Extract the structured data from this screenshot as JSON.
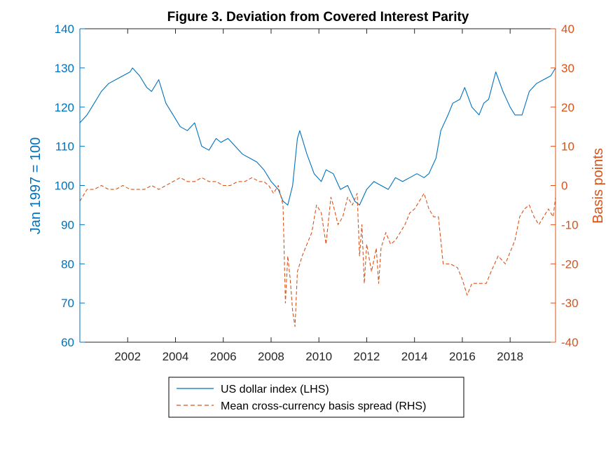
{
  "chart_data": {
    "type": "line",
    "title": "Figure 3. Deviation from Covered Interest Parity",
    "xlabel": "",
    "ylabel_left": "Jan 1997 = 100",
    "ylabel_right": "Basis points",
    "xlim": [
      2000.0,
      2019.9
    ],
    "ylim_left": [
      60,
      140
    ],
    "ylim_right": [
      -40,
      40
    ],
    "x_ticks": [
      "2002",
      "2004",
      "2006",
      "2008",
      "2010",
      "2012",
      "2014",
      "2016",
      "2018"
    ],
    "y_ticks_left": [
      "60",
      "70",
      "80",
      "90",
      "100",
      "110",
      "120",
      "130",
      "140"
    ],
    "y_ticks_right": [
      "-40",
      "-30",
      "-20",
      "-10",
      "0",
      "10",
      "20",
      "30",
      "40"
    ],
    "grid": false,
    "legend_position": "bottom-center",
    "colors": {
      "left": "#0072BD",
      "right": "#D95319"
    },
    "series": [
      {
        "name": "US dollar index (LHS)",
        "axis": "left",
        "style": "solid",
        "x": [
          2000.0,
          2000.3,
          2000.6,
          2000.9,
          2001.2,
          2001.5,
          2001.8,
          2002.1,
          2002.2,
          2002.5,
          2002.8,
          2003.0,
          2003.3,
          2003.6,
          2003.9,
          2004.2,
          2004.5,
          2004.8,
          2005.1,
          2005.4,
          2005.7,
          2005.9,
          2006.2,
          2006.5,
          2006.8,
          2007.1,
          2007.4,
          2007.7,
          2008.0,
          2008.3,
          2008.5,
          2008.7,
          2008.9,
          2009.1,
          2009.2,
          2009.5,
          2009.8,
          2010.1,
          2010.3,
          2010.6,
          2010.9,
          2011.2,
          2011.5,
          2011.7,
          2012.0,
          2012.3,
          2012.6,
          2012.9,
          2013.2,
          2013.5,
          2013.8,
          2014.1,
          2014.4,
          2014.6,
          2014.9,
          2015.1,
          2015.4,
          2015.6,
          2015.9,
          2016.1,
          2016.4,
          2016.7,
          2016.9,
          2017.1,
          2017.4,
          2017.7,
          2018.0,
          2018.2,
          2018.5,
          2018.8,
          2019.1,
          2019.4,
          2019.7,
          2019.9
        ],
        "values": [
          116,
          118,
          121,
          124,
          126,
          127,
          128,
          129,
          130,
          128,
          125,
          124,
          127,
          121,
          118,
          115,
          114,
          116,
          110,
          109,
          112,
          111,
          112,
          110,
          108,
          107,
          106,
          104,
          101,
          99,
          96,
          95,
          100,
          112,
          114,
          108,
          103,
          101,
          104,
          103,
          99,
          100,
          96,
          95,
          99,
          101,
          100,
          99,
          102,
          101,
          102,
          103,
          102,
          103,
          107,
          114,
          118,
          121,
          122,
          125,
          120,
          118,
          121,
          122,
          129,
          124,
          120,
          118,
          118,
          124,
          126,
          127,
          128,
          130
        ]
      },
      {
        "name": "Mean cross-currency basis spread (RHS)",
        "axis": "right",
        "style": "dashed",
        "x": [
          2000.0,
          2000.3,
          2000.6,
          2000.9,
          2001.2,
          2001.5,
          2001.8,
          2002.1,
          2002.4,
          2002.7,
          2003.0,
          2003.3,
          2003.6,
          2003.9,
          2004.2,
          2004.5,
          2004.8,
          2005.1,
          2005.4,
          2005.7,
          2006.0,
          2006.3,
          2006.6,
          2006.9,
          2007.2,
          2007.5,
          2007.7,
          2007.9,
          2008.1,
          2008.3,
          2008.5,
          2008.6,
          2008.7,
          2008.8,
          2008.9,
          2009.0,
          2009.1,
          2009.2,
          2009.3,
          2009.5,
          2009.7,
          2009.9,
          2010.1,
          2010.3,
          2010.5,
          2010.6,
          2010.8,
          2011.0,
          2011.2,
          2011.4,
          2011.6,
          2011.7,
          2011.8,
          2011.9,
          2012.0,
          2012.2,
          2012.4,
          2012.5,
          2012.6,
          2012.8,
          2013.0,
          2013.2,
          2013.4,
          2013.6,
          2013.8,
          2014.0,
          2014.2,
          2014.4,
          2014.6,
          2014.8,
          2015.0,
          2015.2,
          2015.5,
          2015.8,
          2016.0,
          2016.2,
          2016.4,
          2016.7,
          2017.0,
          2017.2,
          2017.5,
          2017.8,
          2018.0,
          2018.2,
          2018.4,
          2018.6,
          2018.8,
          2019.0,
          2019.2,
          2019.4,
          2019.6,
          2019.8,
          2019.9
        ],
        "values": [
          -4,
          -1,
          -1,
          0,
          -1,
          -1,
          0,
          -1,
          -1,
          -1,
          0,
          -1,
          0,
          1,
          2,
          1,
          1,
          2,
          1,
          1,
          0,
          0,
          1,
          1,
          2,
          1,
          1,
          0,
          -2,
          0,
          -5,
          -30,
          -18,
          -24,
          -32,
          -36,
          -22,
          -20,
          -18,
          -15,
          -12,
          -5,
          -7,
          -15,
          -3,
          -5,
          -10,
          -8,
          -3,
          -5,
          -2,
          -18,
          -10,
          -25,
          -15,
          -22,
          -16,
          -25,
          -16,
          -12,
          -15,
          -14,
          -12,
          -10,
          -7,
          -6,
          -4,
          -2,
          -6,
          -8,
          -8,
          -20,
          -20,
          -21,
          -24,
          -28,
          -25,
          -25,
          -25,
          -22,
          -18,
          -20,
          -17,
          -14,
          -8,
          -6,
          -5,
          -8,
          -10,
          -8,
          -6,
          -8,
          -3
        ]
      }
    ]
  }
}
